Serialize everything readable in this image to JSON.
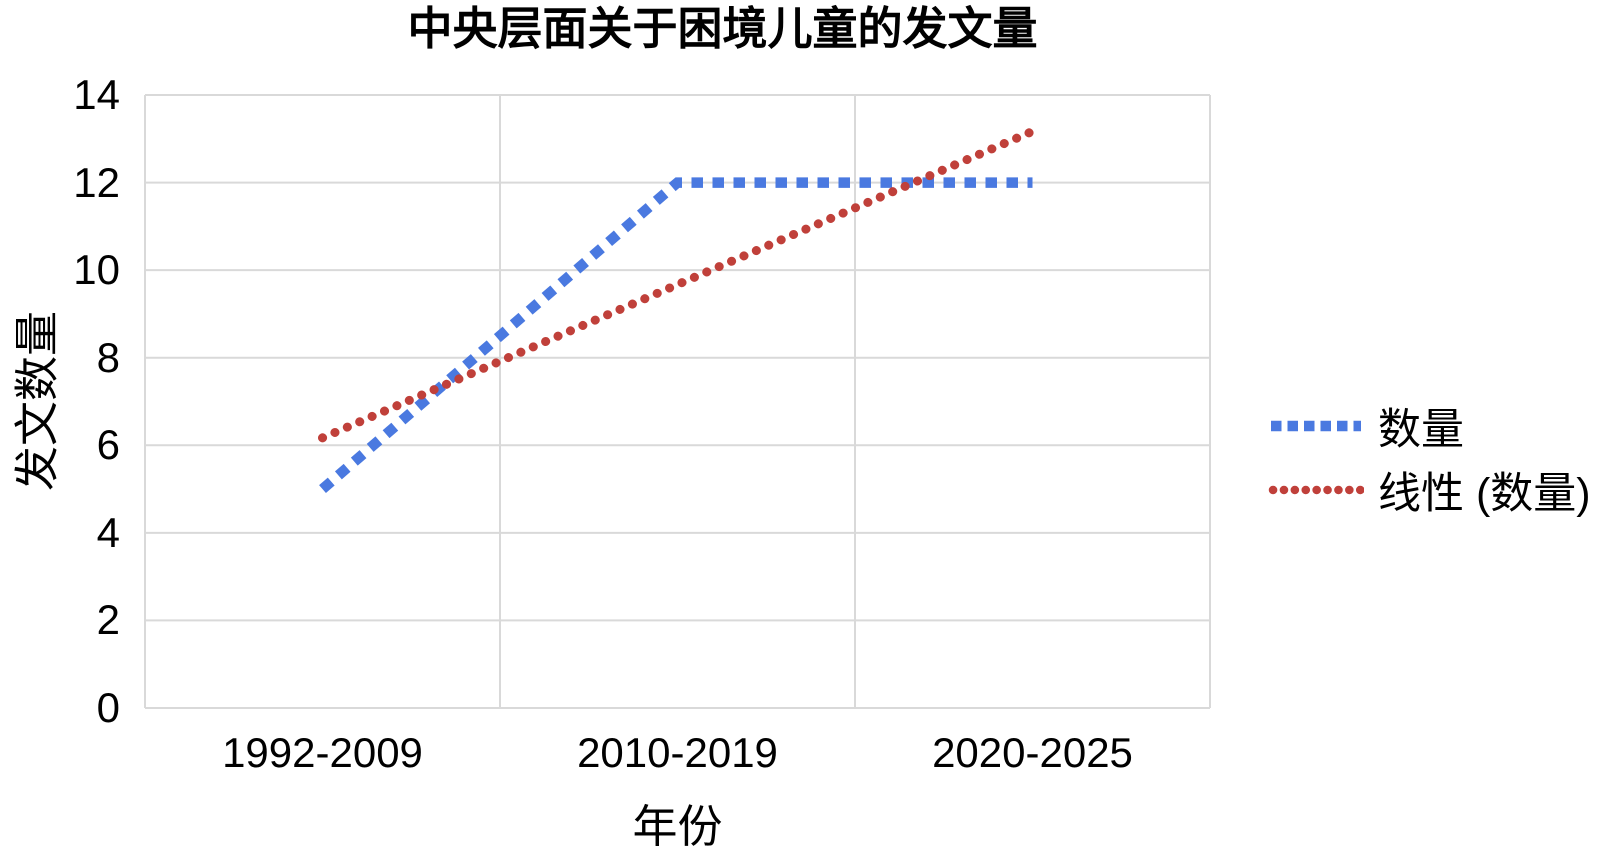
{
  "chart_data": {
    "type": "line",
    "title": "中央层面关于困境儿童的发文量",
    "xlabel": "年份",
    "ylabel": "发文数量",
    "categories": [
      "1992-2009",
      "2010-2019",
      "2020-2025"
    ],
    "series": [
      {
        "name": "数量",
        "values": [
          5,
          12,
          12
        ],
        "color": "#4a79e0",
        "style": "square-dash"
      },
      {
        "name": "线性 (数量)",
        "values": [
          6.17,
          9.67,
          13.17
        ],
        "color": "#c0403a",
        "style": "dot"
      }
    ],
    "ylim": [
      0,
      14
    ],
    "yticks": [
      0,
      2,
      4,
      6,
      8,
      10,
      12,
      14
    ],
    "grid": true,
    "legend_position": "right",
    "gridline_color": "#d9d9d9",
    "text_color": "#000000",
    "background_color": "#ffffff"
  }
}
